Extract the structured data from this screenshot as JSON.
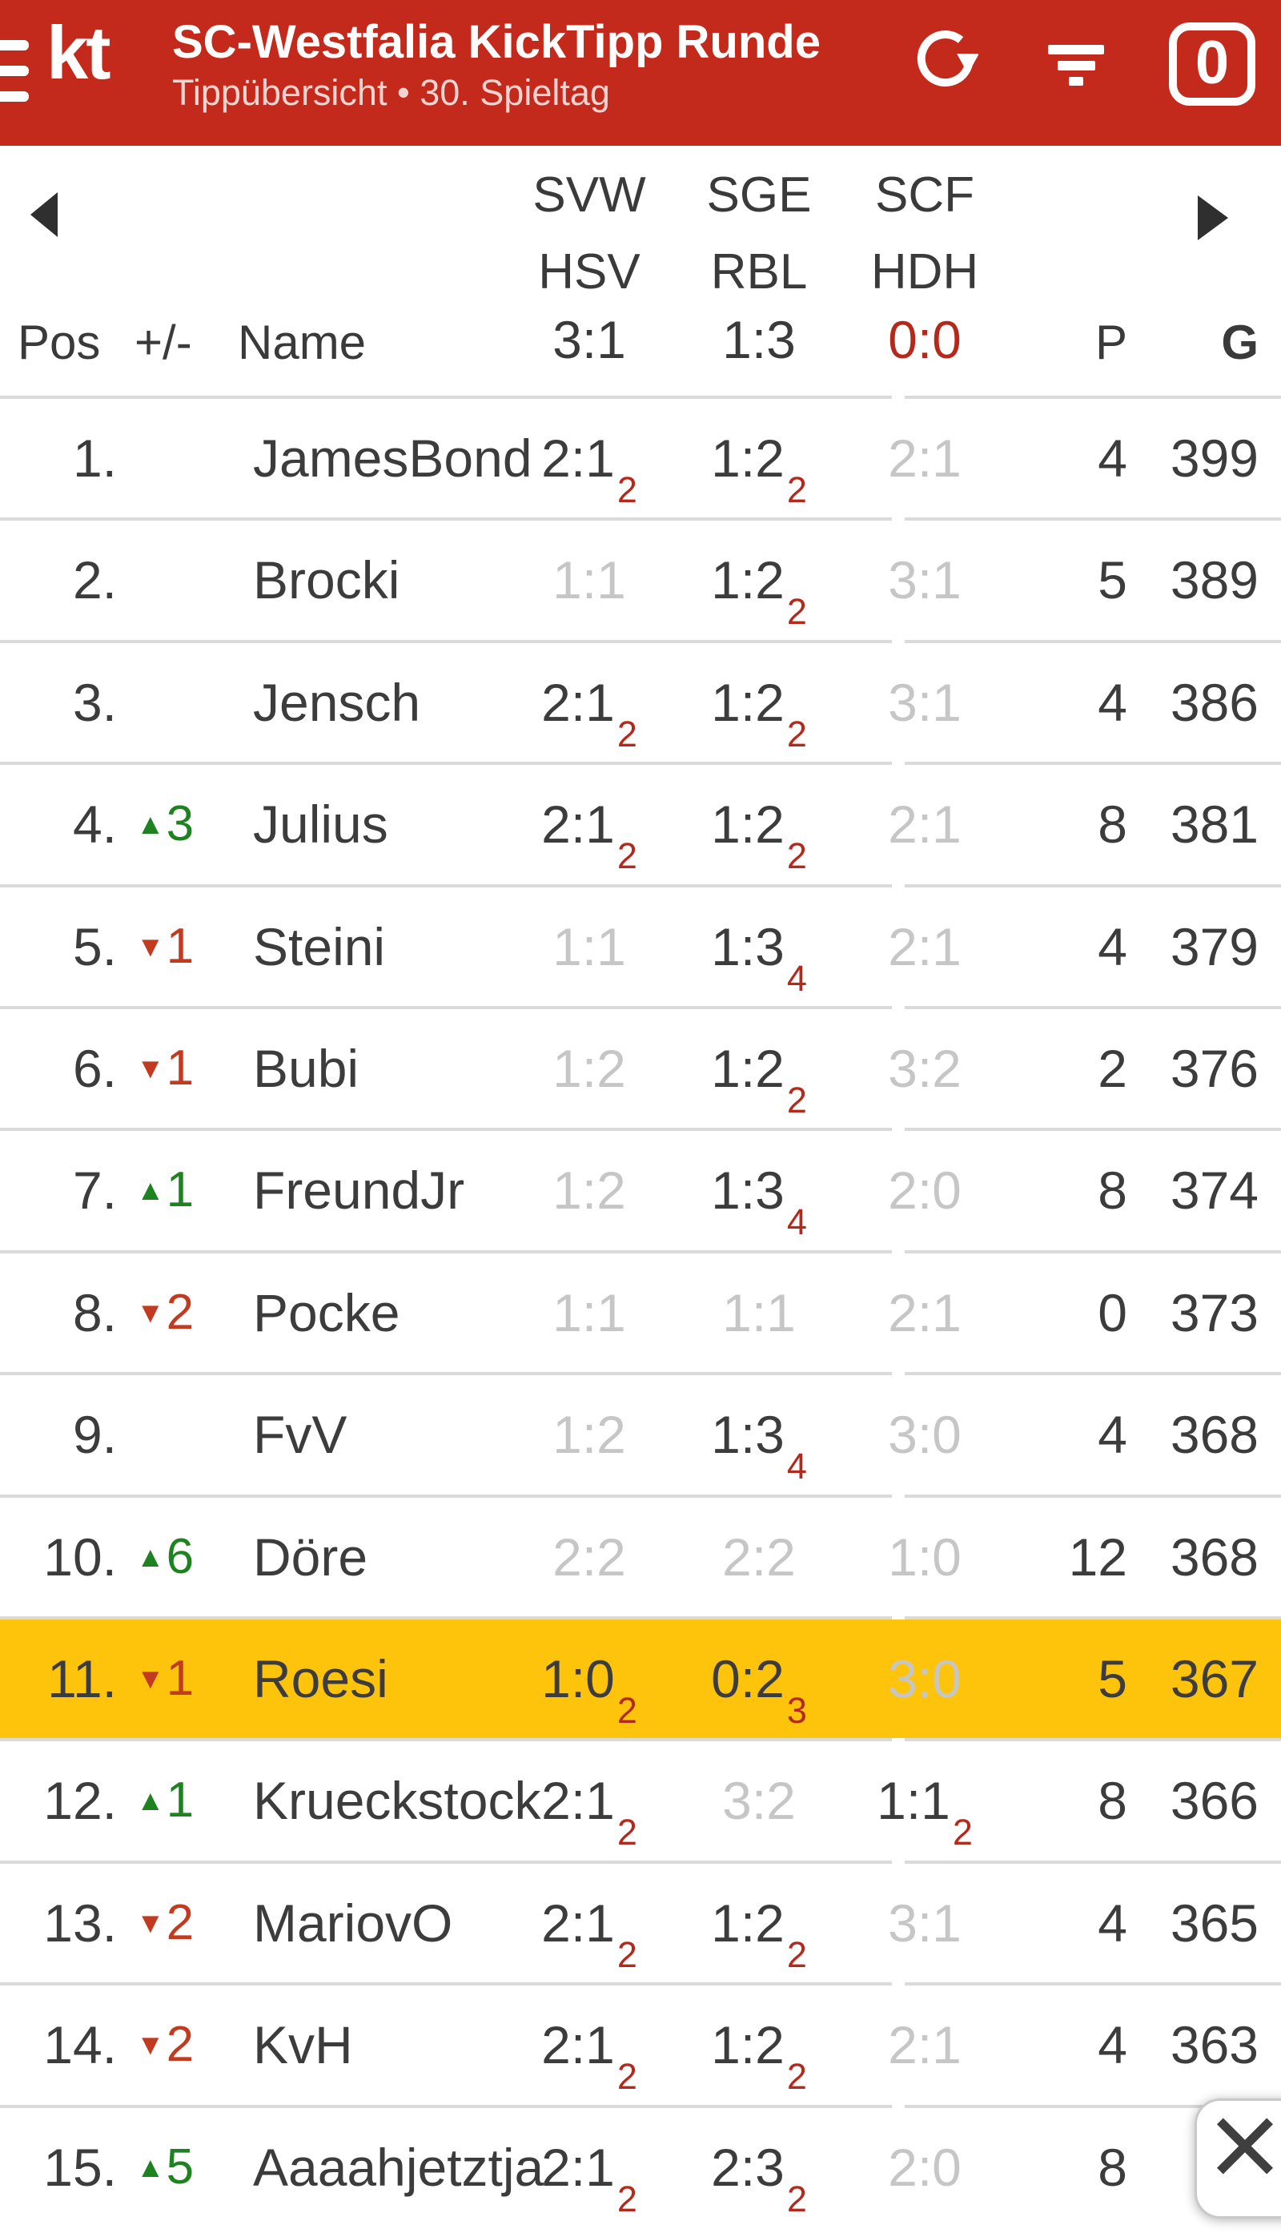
{
  "header": {
    "logo": "kt",
    "title": "SC-Westfalia KickTipp Runde",
    "subtitle": "Tippübersicht • 30. Spieltag",
    "badge_count": "0",
    "icons": {
      "menu": "hamburger-bars",
      "refresh": "circular-arrow",
      "filter": "funnel-lines",
      "badge": "rounded-square-outline"
    }
  },
  "table": {
    "columns": {
      "pos": "Pos",
      "delta": "+/-",
      "name": "Name",
      "points": "P",
      "total": "G"
    },
    "matches": [
      {
        "home": "SVW",
        "away": "HSV",
        "result": "3:1",
        "live": false
      },
      {
        "home": "SGE",
        "away": "RBL",
        "result": "1:3",
        "live": false
      },
      {
        "home": "SCF",
        "away": "HDH",
        "result": "0:0",
        "live": true
      }
    ],
    "rows": [
      {
        "pos": "1.",
        "delta": null,
        "name": "JamesBond",
        "preds": [
          {
            "score": "2:1",
            "points": "2"
          },
          {
            "score": "1:2",
            "points": "2"
          },
          {
            "score": "2:1",
            "points": null
          }
        ],
        "p": "4",
        "g": "399",
        "highlight": false
      },
      {
        "pos": "2.",
        "delta": null,
        "name": "Brocki",
        "preds": [
          {
            "score": "1:1",
            "points": null
          },
          {
            "score": "1:2",
            "points": "2"
          },
          {
            "score": "3:1",
            "points": null
          }
        ],
        "p": "5",
        "g": "389",
        "highlight": false
      },
      {
        "pos": "3.",
        "delta": null,
        "name": "Jensch",
        "preds": [
          {
            "score": "2:1",
            "points": "2"
          },
          {
            "score": "1:2",
            "points": "2"
          },
          {
            "score": "3:1",
            "points": null
          }
        ],
        "p": "4",
        "g": "386",
        "highlight": false
      },
      {
        "pos": "4.",
        "delta": {
          "dir": "up",
          "val": "3"
        },
        "name": "Julius",
        "preds": [
          {
            "score": "2:1",
            "points": "2"
          },
          {
            "score": "1:2",
            "points": "2"
          },
          {
            "score": "2:1",
            "points": null
          }
        ],
        "p": "8",
        "g": "381",
        "highlight": false
      },
      {
        "pos": "5.",
        "delta": {
          "dir": "down",
          "val": "1"
        },
        "name": "Steini",
        "preds": [
          {
            "score": "1:1",
            "points": null
          },
          {
            "score": "1:3",
            "points": "4"
          },
          {
            "score": "2:1",
            "points": null
          }
        ],
        "p": "4",
        "g": "379",
        "highlight": false
      },
      {
        "pos": "6.",
        "delta": {
          "dir": "down",
          "val": "1"
        },
        "name": "Bubi",
        "preds": [
          {
            "score": "1:2",
            "points": null
          },
          {
            "score": "1:2",
            "points": "2"
          },
          {
            "score": "3:2",
            "points": null
          }
        ],
        "p": "2",
        "g": "376",
        "highlight": false
      },
      {
        "pos": "7.",
        "delta": {
          "dir": "up",
          "val": "1"
        },
        "name": "FreundJr",
        "preds": [
          {
            "score": "1:2",
            "points": null
          },
          {
            "score": "1:3",
            "points": "4"
          },
          {
            "score": "2:0",
            "points": null
          }
        ],
        "p": "8",
        "g": "374",
        "highlight": false
      },
      {
        "pos": "8.",
        "delta": {
          "dir": "down",
          "val": "2"
        },
        "name": "Pocke",
        "preds": [
          {
            "score": "1:1",
            "points": null
          },
          {
            "score": "1:1",
            "points": null
          },
          {
            "score": "2:1",
            "points": null
          }
        ],
        "p": "0",
        "g": "373",
        "highlight": false
      },
      {
        "pos": "9.",
        "delta": null,
        "name": "FvV",
        "preds": [
          {
            "score": "1:2",
            "points": null
          },
          {
            "score": "1:3",
            "points": "4"
          },
          {
            "score": "3:0",
            "points": null
          }
        ],
        "p": "4",
        "g": "368",
        "highlight": false
      },
      {
        "pos": "10.",
        "delta": {
          "dir": "up",
          "val": "6"
        },
        "name": "Döre",
        "preds": [
          {
            "score": "2:2",
            "points": null
          },
          {
            "score": "2:2",
            "points": null
          },
          {
            "score": "1:0",
            "points": null
          }
        ],
        "p": "12",
        "g": "368",
        "highlight": false
      },
      {
        "pos": "11.",
        "delta": {
          "dir": "down",
          "val": "1"
        },
        "name": "Roesi",
        "preds": [
          {
            "score": "1:0",
            "points": "2"
          },
          {
            "score": "0:2",
            "points": "3"
          },
          {
            "score": "3:0",
            "points": null
          }
        ],
        "p": "5",
        "g": "367",
        "highlight": true
      },
      {
        "pos": "12.",
        "delta": {
          "dir": "up",
          "val": "1"
        },
        "name": "Krueckstock",
        "preds": [
          {
            "score": "2:1",
            "points": "2"
          },
          {
            "score": "3:2",
            "points": null
          },
          {
            "score": "1:1",
            "points": "2"
          }
        ],
        "p": "8",
        "g": "366",
        "highlight": false
      },
      {
        "pos": "13.",
        "delta": {
          "dir": "down",
          "val": "2"
        },
        "name": "MariovO",
        "preds": [
          {
            "score": "2:1",
            "points": "2"
          },
          {
            "score": "1:2",
            "points": "2"
          },
          {
            "score": "3:1",
            "points": null
          }
        ],
        "p": "4",
        "g": "365",
        "highlight": false
      },
      {
        "pos": "14.",
        "delta": {
          "dir": "down",
          "val": "2"
        },
        "name": "KvH",
        "preds": [
          {
            "score": "2:1",
            "points": "2"
          },
          {
            "score": "1:2",
            "points": "2"
          },
          {
            "score": "2:1",
            "points": null
          }
        ],
        "p": "4",
        "g": "363",
        "highlight": false
      },
      {
        "pos": "15.",
        "delta": {
          "dir": "up",
          "val": "5"
        },
        "name": "Aaaahjetztja",
        "preds": [
          {
            "score": "2:1",
            "points": "2"
          },
          {
            "score": "2:3",
            "points": "2"
          },
          {
            "score": "2:0",
            "points": null
          }
        ],
        "p": "8",
        "g": "",
        "highlight": false
      }
    ]
  },
  "colors": {
    "header_bg": "#c32a1b",
    "highlight_row": "#fdc40b",
    "text_dark": "#3c3c3c",
    "pred_gray": "#c6c6c6",
    "points_red": "#b5291d",
    "live_result_red": "#b5291d",
    "delta_up_green": "#1e8220",
    "delta_down_red": "#c23a20"
  },
  "close": {
    "icon": "x"
  }
}
